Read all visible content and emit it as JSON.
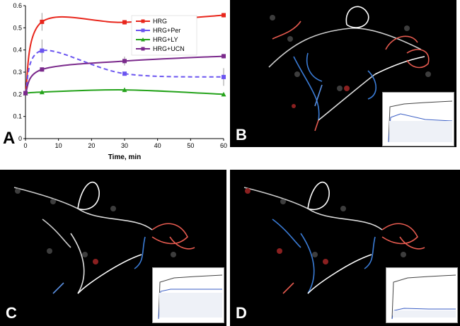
{
  "chart_data": {
    "type": "line",
    "xlabel": "Time, min",
    "ylabel": "",
    "xlim": [
      0,
      60
    ],
    "ylim": [
      0,
      0.6
    ],
    "xticks": [
      "0",
      "10",
      "20",
      "30",
      "40",
      "50",
      "60"
    ],
    "yticks": [
      "0",
      "0.1",
      "0.2",
      "0.3",
      "0.4",
      "0.5",
      "0.6"
    ],
    "grid": false,
    "legend_position": "top-right",
    "series": [
      {
        "name": "HRG",
        "color": "#e8261c",
        "dashed": false,
        "marker": "square",
        "x": [
          0,
          5,
          30,
          60
        ],
        "y": [
          0.205,
          0.527,
          0.525,
          0.557
        ],
        "err": [
          0.005,
          0.04,
          0.01,
          0.01
        ]
      },
      {
        "name": "HRG+Per",
        "color": "#6b55f0",
        "dashed": true,
        "marker": "square",
        "x": [
          0,
          5,
          30,
          60
        ],
        "y": [
          0.205,
          0.397,
          0.293,
          0.278
        ],
        "err": [
          0.005,
          0.05,
          0.005,
          0.04
        ]
      },
      {
        "name": "HRG+LY",
        "color": "#25a31b",
        "dashed": false,
        "marker": "triangle",
        "x": [
          0,
          5,
          30,
          60
        ],
        "y": [
          0.205,
          0.21,
          0.22,
          0.2
        ],
        "err": [
          0.005,
          0.005,
          0.01,
          0.005
        ]
      },
      {
        "name": "HRG+UCN",
        "color": "#7b2a8c",
        "dashed": false,
        "marker": "square",
        "x": [
          0,
          5,
          30,
          60
        ],
        "y": [
          0.205,
          0.312,
          0.35,
          0.372
        ],
        "err": [
          0.005,
          0.01,
          0.02,
          0.01
        ]
      }
    ]
  },
  "panels": {
    "a": "A",
    "b": "B",
    "c": "C",
    "d": "D"
  }
}
